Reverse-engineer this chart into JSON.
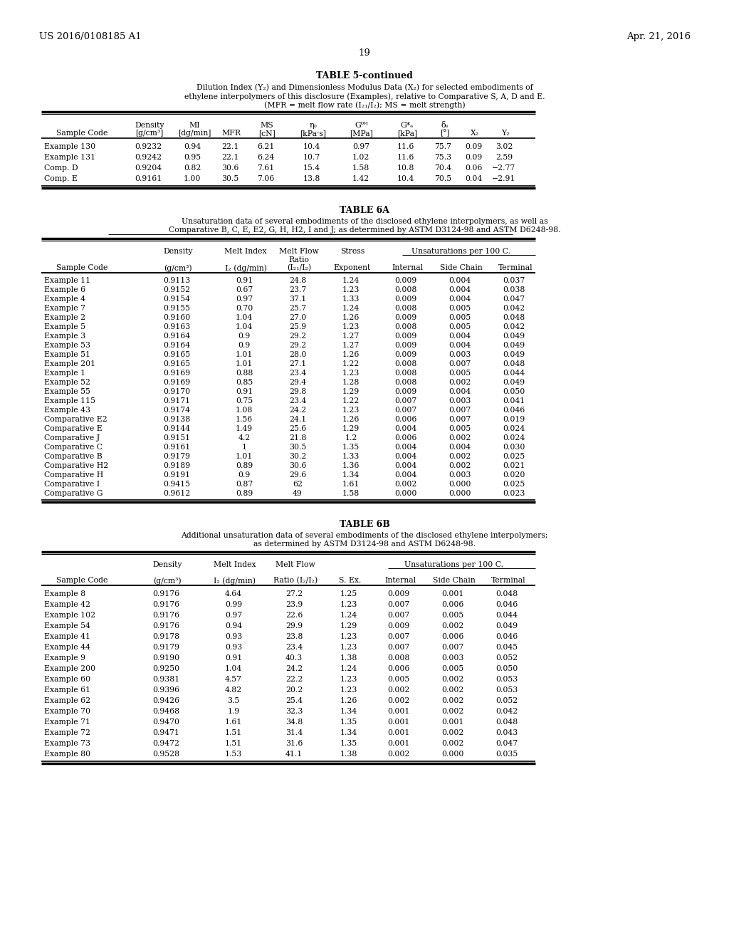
{
  "header_left": "US 2016/0108185 A1",
  "header_right": "Apr. 21, 2016",
  "page_number": "19",
  "table5_title": "TABLE 5-continued",
  "table5_caption_lines": [
    "Dilution Index (Y₂) and Dimensionless Modulus Data (X₂) for selected embodiments of",
    "ethylene interpolymers of this disclosure (Examples), relative to Comparative S, A, D and E.",
    "(MFR = melt flow rate (I₂₁/I₂); MS = melt strength)"
  ],
  "table5_data": [
    [
      "Example 130",
      "0.9232",
      "0.94",
      "22.1",
      "6.21",
      "10.4",
      "0.97",
      "11.6",
      "75.7",
      "0.09",
      "3.02"
    ],
    [
      "Example 131",
      "0.9242",
      "0.95",
      "22.1",
      "6.24",
      "10.7",
      "1.02",
      "11.6",
      "75.3",
      "0.09",
      "2.59"
    ],
    [
      "Comp. D",
      "0.9204",
      "0.82",
      "30.6",
      "7.61",
      "15.4",
      "1.58",
      "10.8",
      "70.4",
      "0.06",
      "−2.77"
    ],
    [
      "Comp. E",
      "0.9161",
      "1.00",
      "30.5",
      "7.06",
      "13.8",
      "1.42",
      "10.4",
      "70.5",
      "0.04",
      "−2.91"
    ]
  ],
  "table6a_title": "TABLE 6A",
  "table6a_caption_lines": [
    "Unsaturation data of several embodiments of the disclosed ethylene interpolymers, as well as",
    "Comparative B, C, E, E2, G, H, H2, I and J; as determined by ASTM D3124-98 and ASTM D6248-98."
  ],
  "table6a_data": [
    [
      "Example 11",
      "0.9113",
      "0.91",
      "24.8",
      "1.24",
      "0.009",
      "0.004",
      "0.037"
    ],
    [
      "Example 6",
      "0.9152",
      "0.67",
      "23.7",
      "1.23",
      "0.008",
      "0.004",
      "0.038"
    ],
    [
      "Example 4",
      "0.9154",
      "0.97",
      "37.1",
      "1.33",
      "0.009",
      "0.004",
      "0.047"
    ],
    [
      "Example 7",
      "0.9155",
      "0.70",
      "25.7",
      "1.24",
      "0.008",
      "0.005",
      "0.042"
    ],
    [
      "Example 2",
      "0.9160",
      "1.04",
      "27.0",
      "1.26",
      "0.009",
      "0.005",
      "0.048"
    ],
    [
      "Example 5",
      "0.9163",
      "1.04",
      "25.9",
      "1.23",
      "0.008",
      "0.005",
      "0.042"
    ],
    [
      "Example 3",
      "0.9164",
      "0.9",
      "29.2",
      "1.27",
      "0.009",
      "0.004",
      "0.049"
    ],
    [
      "Example 53",
      "0.9164",
      "0.9",
      "29.2",
      "1.27",
      "0.009",
      "0.004",
      "0.049"
    ],
    [
      "Example 51",
      "0.9165",
      "1.01",
      "28.0",
      "1.26",
      "0.009",
      "0.003",
      "0.049"
    ],
    [
      "Example 201",
      "0.9165",
      "1.01",
      "27.1",
      "1.22",
      "0.008",
      "0.007",
      "0.048"
    ],
    [
      "Example 1",
      "0.9169",
      "0.88",
      "23.4",
      "1.23",
      "0.008",
      "0.005",
      "0.044"
    ],
    [
      "Example 52",
      "0.9169",
      "0.85",
      "29.4",
      "1.28",
      "0.008",
      "0.002",
      "0.049"
    ],
    [
      "Example 55",
      "0.9170",
      "0.91",
      "29.8",
      "1.29",
      "0.009",
      "0.004",
      "0.050"
    ],
    [
      "Example 115",
      "0.9171",
      "0.75",
      "23.4",
      "1.22",
      "0.007",
      "0.003",
      "0.041"
    ],
    [
      "Example 43",
      "0.9174",
      "1.08",
      "24.2",
      "1.23",
      "0.007",
      "0.007",
      "0.046"
    ],
    [
      "Comparative E2",
      "0.9138",
      "1.56",
      "24.1",
      "1.26",
      "0.006",
      "0.007",
      "0.019"
    ],
    [
      "Comparative E",
      "0.9144",
      "1.49",
      "25.6",
      "1.29",
      "0.004",
      "0.005",
      "0.024"
    ],
    [
      "Comparative J",
      "0.9151",
      "4.2",
      "21.8",
      "1.2",
      "0.006",
      "0.002",
      "0.024"
    ],
    [
      "Comparative C",
      "0.9161",
      "1",
      "30.5",
      "1.35",
      "0.004",
      "0.004",
      "0.030"
    ],
    [
      "Comparative B",
      "0.9179",
      "1.01",
      "30.2",
      "1.33",
      "0.004",
      "0.002",
      "0.025"
    ],
    [
      "Comparative H2",
      "0.9189",
      "0.89",
      "30.6",
      "1.36",
      "0.004",
      "0.002",
      "0.021"
    ],
    [
      "Comparative H",
      "0.9191",
      "0.9",
      "29.6",
      "1.34",
      "0.004",
      "0.003",
      "0.020"
    ],
    [
      "Comparative I",
      "0.9415",
      "0.87",
      "62",
      "1.61",
      "0.002",
      "0.000",
      "0.025"
    ],
    [
      "Comparative G",
      "0.9612",
      "0.89",
      "49",
      "1.58",
      "0.000",
      "0.000",
      "0.023"
    ]
  ],
  "table6b_title": "TABLE 6B",
  "table6b_caption_lines": [
    "Additional unsaturation data of several embodiments of the disclosed ethylene interpolymers;",
    "as determined by ASTM D3124-98 and ASTM D6248-98."
  ],
  "table6b_data": [
    [
      "Example 8",
      "0.9176",
      "4.64",
      "27.2",
      "1.25",
      "0.009",
      "0.001",
      "0.048"
    ],
    [
      "Example 42",
      "0.9176",
      "0.99",
      "23.9",
      "1.23",
      "0.007",
      "0.006",
      "0.046"
    ],
    [
      "Example 102",
      "0.9176",
      "0.97",
      "22.6",
      "1.24",
      "0.007",
      "0.005",
      "0.044"
    ],
    [
      "Example 54",
      "0.9176",
      "0.94",
      "29.9",
      "1.29",
      "0.009",
      "0.002",
      "0.049"
    ],
    [
      "Example 41",
      "0.9178",
      "0.93",
      "23.8",
      "1.23",
      "0.007",
      "0.006",
      "0.046"
    ],
    [
      "Example 44",
      "0.9179",
      "0.93",
      "23.4",
      "1.23",
      "0.007",
      "0.007",
      "0.045"
    ],
    [
      "Example 9",
      "0.9190",
      "0.91",
      "40.3",
      "1.38",
      "0.008",
      "0.003",
      "0.052"
    ],
    [
      "Example 200",
      "0.9250",
      "1.04",
      "24.2",
      "1.24",
      "0.006",
      "0.005",
      "0.050"
    ],
    [
      "Example 60",
      "0.9381",
      "4.57",
      "22.2",
      "1.23",
      "0.005",
      "0.002",
      "0.053"
    ],
    [
      "Example 61",
      "0.9396",
      "4.82",
      "20.2",
      "1.23",
      "0.002",
      "0.002",
      "0.053"
    ],
    [
      "Example 62",
      "0.9426",
      "3.5",
      "25.4",
      "1.26",
      "0.002",
      "0.002",
      "0.052"
    ],
    [
      "Example 70",
      "0.9468",
      "1.9",
      "32.3",
      "1.34",
      "0.001",
      "0.002",
      "0.042"
    ],
    [
      "Example 71",
      "0.9470",
      "1.61",
      "34.8",
      "1.35",
      "0.001",
      "0.001",
      "0.048"
    ],
    [
      "Example 72",
      "0.9471",
      "1.51",
      "31.4",
      "1.34",
      "0.001",
      "0.002",
      "0.043"
    ],
    [
      "Example 73",
      "0.9472",
      "1.51",
      "31.6",
      "1.35",
      "0.001",
      "0.002",
      "0.047"
    ],
    [
      "Example 80",
      "0.9528",
      "1.53",
      "41.1",
      "1.38",
      "0.002",
      "0.000",
      "0.035"
    ]
  ]
}
